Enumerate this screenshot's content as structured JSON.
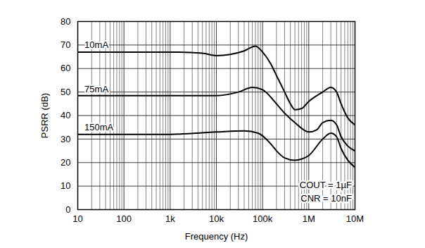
{
  "chart_data": {
    "type": "line",
    "x_label": "Frequency (Hz)",
    "y_label": "PSRR (dB)",
    "log": "x",
    "grid": true,
    "xlim": [
      10,
      10000000
    ],
    "xticks": [
      10,
      100,
      {
        "value": 1000,
        "label": "1k"
      },
      {
        "value": 10000,
        "label": "10k"
      },
      {
        "value": 100000,
        "label": "100k"
      },
      {
        "value": 1000000,
        "label": "1M"
      },
      {
        "value": 10000000,
        "label": "10M"
      }
    ],
    "ylim": [
      0,
      80
    ],
    "yticks": [
      0,
      10,
      20,
      30,
      40,
      50,
      60,
      70,
      80
    ],
    "series": [
      {
        "name": "10mA",
        "color": "#000000",
        "x": [
          10,
          100,
          1000,
          5000,
          10000,
          20000,
          40000,
          70000,
          100000,
          150000,
          200000,
          300000,
          400000,
          500000,
          700000,
          1000000,
          2000000,
          3000000,
          4000000,
          5000000,
          7000000,
          10000000
        ],
        "values": [
          67,
          67,
          67,
          66.5,
          65.5,
          66,
          67.5,
          69.5,
          67,
          62,
          57,
          50,
          45,
          42.5,
          43,
          46,
          50,
          52,
          50,
          45,
          39,
          36
        ]
      },
      {
        "name": "75mA",
        "color": "#000000",
        "x": [
          10,
          1000,
          10000,
          30000,
          60000,
          100000,
          200000,
          300000,
          500000,
          1000000,
          1500000,
          2000000,
          3000000,
          4000000,
          5000000,
          7000000,
          10000000
        ],
        "values": [
          48.5,
          48.5,
          48.5,
          50,
          52,
          51,
          45,
          41,
          37,
          33,
          34,
          37,
          38,
          36,
          31,
          27,
          25
        ]
      },
      {
        "name": "150mA",
        "color": "#000000",
        "x": [
          10,
          1000,
          10000,
          40000,
          80000,
          150000,
          200000,
          300000,
          500000,
          700000,
          1000000,
          2000000,
          3000000,
          4000000,
          5000000,
          7000000,
          10000000
        ],
        "values": [
          32,
          32,
          33,
          33.5,
          32.5,
          28,
          25,
          22,
          21,
          21.5,
          23,
          30,
          32.5,
          31,
          26,
          21,
          18
        ]
      }
    ],
    "annotations": [
      {
        "text": "10mA",
        "x": 14,
        "y": 70
      },
      {
        "text": "75mA",
        "x": 14,
        "y": 51
      },
      {
        "text": "150mA",
        "x": 14,
        "y": 35
      },
      {
        "text": "COUT = 1µF",
        "x": 8500000,
        "y": 10.3
      },
      {
        "text": "CNR = 10nF",
        "x": 8500000,
        "y": 4.8
      }
    ]
  }
}
